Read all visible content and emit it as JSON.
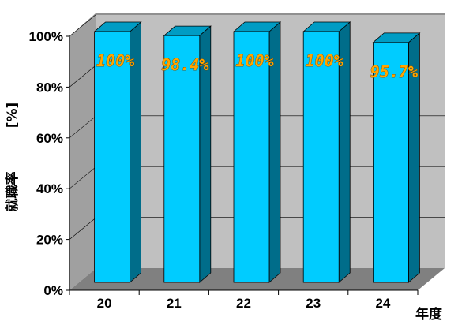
{
  "chart_data": {
    "type": "bar",
    "categories": [
      "20",
      "21",
      "22",
      "23",
      "24"
    ],
    "values": [
      100,
      98.4,
      100,
      100,
      95.7
    ],
    "data_labels": [
      "100%",
      "98.4%",
      "100%",
      "100%",
      "95.7%"
    ],
    "ylabel": "就職率",
    "yunit": "[%]",
    "xlabel": "年度",
    "ylim": [
      0,
      100
    ],
    "yticks": [
      "0%",
      "20%",
      "40%",
      "60%",
      "80%",
      "100%"
    ],
    "grid": true,
    "colors": {
      "bar_front": "#00ccff",
      "bar_side": "#006d8a",
      "bar_top": "#009cc4",
      "wall": "#c0c0c0",
      "floor": "#808080",
      "data_label": "#ffa500"
    }
  }
}
